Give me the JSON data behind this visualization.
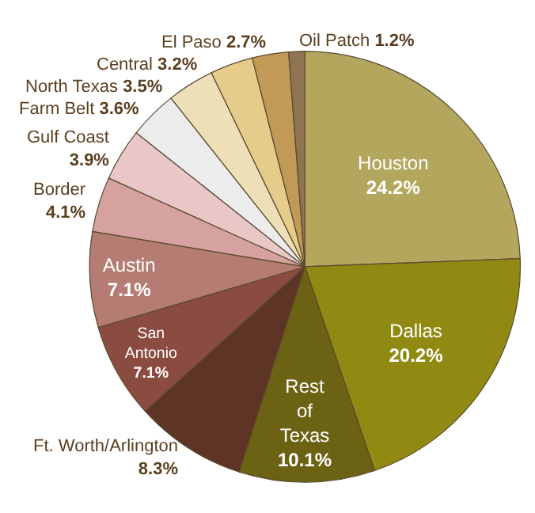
{
  "chart_data": {
    "type": "pie",
    "categories": [
      "Houston",
      "Dallas",
      "Rest of Texas",
      "Ft. Worth/Arlington",
      "San Antonio",
      "Austin",
      "Border",
      "Gulf Coast",
      "Farm Belt",
      "North Texas",
      "Central",
      "El Paso",
      "Oil Patch"
    ],
    "values": [
      24.2,
      20.2,
      10.1,
      8.3,
      7.1,
      7.1,
      4.1,
      3.9,
      3.6,
      3.5,
      3.2,
      2.7,
      1.2
    ],
    "value_labels": [
      "24.2%",
      "20.2%",
      "10.1%",
      "8.3%",
      "7.1%",
      "7.1%",
      "4.1%",
      "3.9%",
      "3.6%",
      "3.5%",
      "3.2%",
      "2.7%",
      "1.2%"
    ],
    "colors": [
      "#b3a75e",
      "#918a12",
      "#6b6214",
      "#5e3426",
      "#8a4c40",
      "#b47c72",
      "#d6a2a0",
      "#e9c7c7",
      "#ececec",
      "#ede0b8",
      "#e6cc8a",
      "#c09a56",
      "#8e7450"
    ],
    "legend": false
  }
}
